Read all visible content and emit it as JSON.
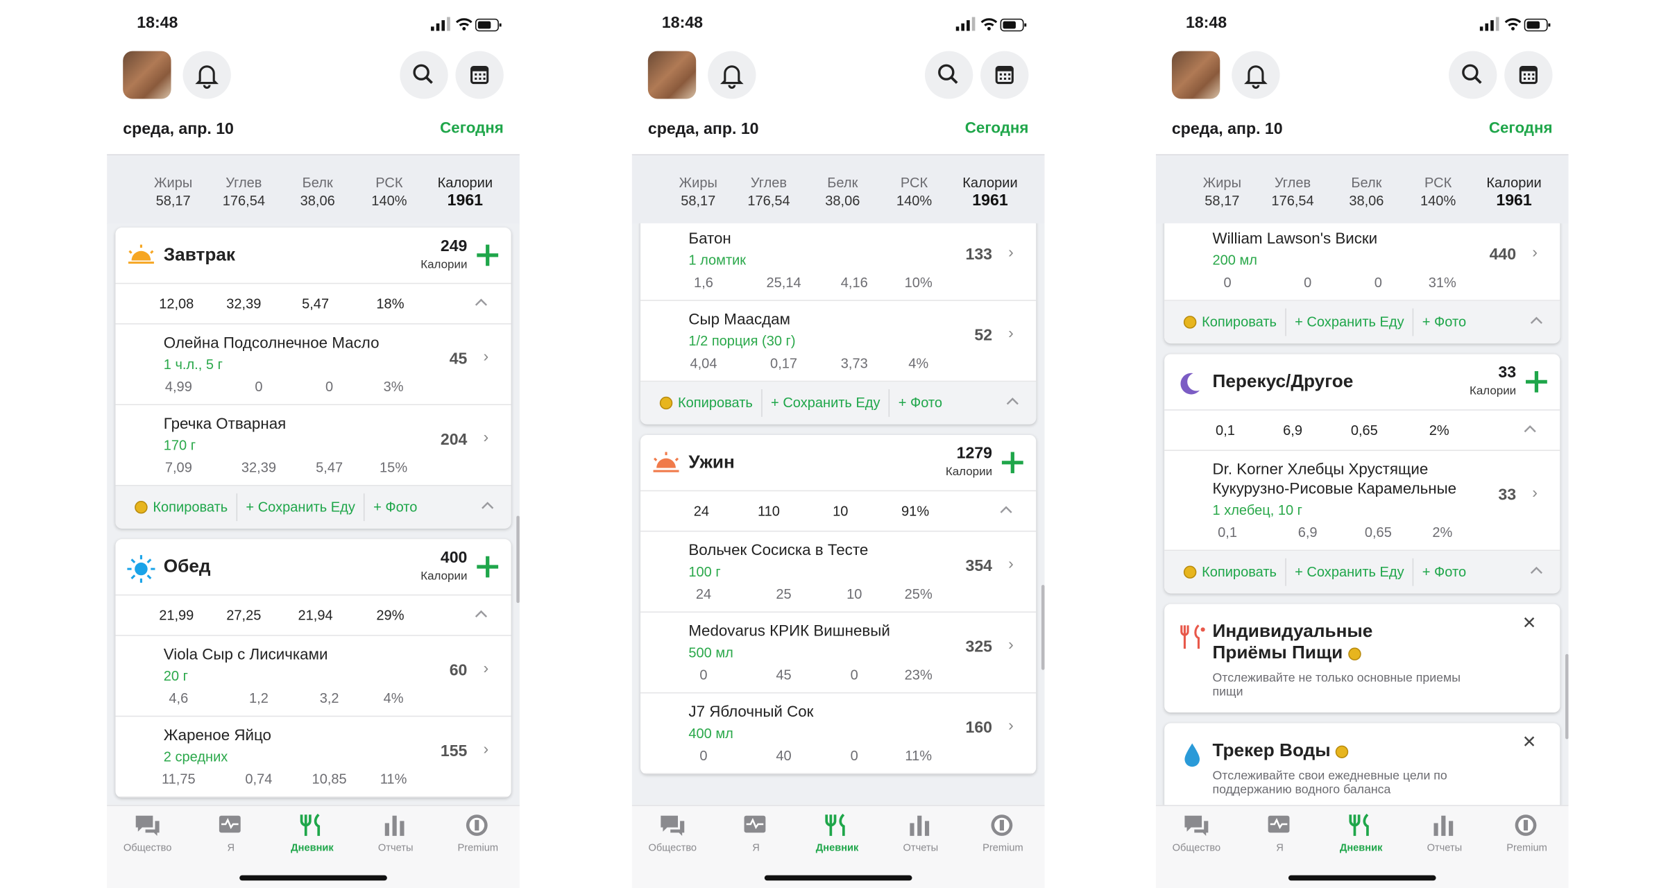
{
  "screens": [
    {
      "time": "18:48",
      "date": "среда, апр. 10",
      "today": "Сегодня",
      "summary": {
        "labels": [
          "Жиры",
          "Углев",
          "Белк",
          "РСК",
          "Калории"
        ],
        "values": [
          "58,17",
          "176,54",
          "38,06",
          "140%",
          "1961"
        ]
      },
      "blocks": [
        {
          "name": "Завтрак",
          "calories": "249",
          "calories_label": "Калории",
          "macros": [
            "12,08",
            "32,39",
            "5,47",
            "18%"
          ],
          "items": [
            {
              "name": "Олейна Подсолнечное Масло",
              "amount": "1 ч.л., 5 г",
              "calories": "45",
              "macros": [
                "4,99",
                "0",
                "0",
                "3%"
              ]
            },
            {
              "name": "Гречка Отварная",
              "amount": "170 г",
              "calories": "204",
              "macros": [
                "7,09",
                "32,39",
                "5,47",
                "15%"
              ]
            }
          ],
          "actions": [
            "Копировать",
            "+ Сохранить Еду",
            "+ Фото"
          ]
        },
        {
          "name": "Обед",
          "calories": "400",
          "calories_label": "Калории",
          "macros": [
            "21,99",
            "27,25",
            "21,94",
            "29%"
          ],
          "items": [
            {
              "name": "Viola Сыр с Лисичками",
              "amount": "20 г",
              "calories": "60",
              "macros": [
                "4,6",
                "1,2",
                "3,2",
                "4%"
              ]
            },
            {
              "name": "Жареное Яйцо",
              "amount": "2 средних",
              "calories": "155",
              "macros": [
                "11,75",
                "0,74",
                "10,85",
                "11%"
              ]
            }
          ]
        }
      ],
      "nav": [
        "Общество",
        "Я",
        "Дневник",
        "Отчеты",
        "Premium"
      ]
    },
    {
      "time": "18:48",
      "date": "среда, апр. 10",
      "today": "Сегодня",
      "summary": {
        "labels": [
          "Жиры",
          "Углев",
          "Белк",
          "РСК",
          "Калории"
        ],
        "values": [
          "58,17",
          "176,54",
          "38,06",
          "140%",
          "1961"
        ]
      },
      "blocks": [
        {
          "items": [
            {
              "name": "Батон",
              "amount": "1 ломтик",
              "calories": "133",
              "macros": [
                "1,6",
                "25,14",
                "4,16",
                "10%"
              ]
            },
            {
              "name": "Сыр Маасдам",
              "amount": "1/2 порция (30 г)",
              "calories": "52",
              "macros": [
                "4,04",
                "0,17",
                "3,73",
                "4%"
              ]
            }
          ],
          "actions": [
            "Копировать",
            "+ Сохранить Еду",
            "+ Фото"
          ]
        },
        {
          "name": "Ужин",
          "calories": "1279",
          "calories_label": "Калории",
          "macros": [
            "24",
            "110",
            "10",
            "91%"
          ],
          "items": [
            {
              "name": "Вольчек Сосиска в Тесте",
              "amount": "100 г",
              "calories": "354",
              "macros": [
                "24",
                "25",
                "10",
                "25%"
              ]
            },
            {
              "name": "Medovarus КРИК Вишневый",
              "amount": "500 мл",
              "calories": "325",
              "macros": [
                "0",
                "45",
                "0",
                "23%"
              ]
            },
            {
              "name": "J7 Яблочный Сок",
              "amount": "400 мл",
              "calories": "160",
              "macros": [
                "0",
                "40",
                "0",
                "11%"
              ]
            }
          ]
        }
      ],
      "nav": [
        "Общество",
        "Я",
        "Дневник",
        "Отчеты",
        "Premium"
      ]
    },
    {
      "time": "18:48",
      "date": "среда, апр. 10",
      "today": "Сегодня",
      "summary": {
        "labels": [
          "Жиры",
          "Углев",
          "Белк",
          "РСК",
          "Калории"
        ],
        "values": [
          "58,17",
          "176,54",
          "38,06",
          "140%",
          "1961"
        ]
      },
      "blocks": [
        {
          "items": [
            {
              "name": "William Lawson's Виски",
              "amount": "200 мл",
              "calories": "440",
              "macros": [
                "0",
                "0",
                "0",
                "31%"
              ]
            }
          ],
          "actions": [
            "Копировать",
            "+ Сохранить Еду",
            "+ Фото"
          ]
        },
        {
          "name": "Перекус/Другое",
          "calories": "33",
          "calories_label": "Калории",
          "macros": [
            "0,1",
            "6,9",
            "0,65",
            "2%"
          ],
          "items": [
            {
              "name": "Dr. Korner Хлебцы Хрустящие Кукурузно-Рисовые Карамельные",
              "amount": "1 хлебец, 10 г",
              "calories": "33",
              "macros": [
                "0,1",
                "6,9",
                "0,65",
                "2%"
              ]
            }
          ],
          "actions": [
            "Копировать",
            "+ Сохранить Еду",
            "+ Фото"
          ]
        },
        {
          "title": "Индивидуальные Приёмы Пищи",
          "text": "Отслеживайте не только основные приемы пищи"
        },
        {
          "title": "Трекер Воды",
          "text": "Отслеживайте свои ежедневные цели по поддержанию водного баланса"
        }
      ],
      "nav": [
        "Общество",
        "Я",
        "Дневник",
        "Отчеты",
        "Premium"
      ]
    }
  ]
}
